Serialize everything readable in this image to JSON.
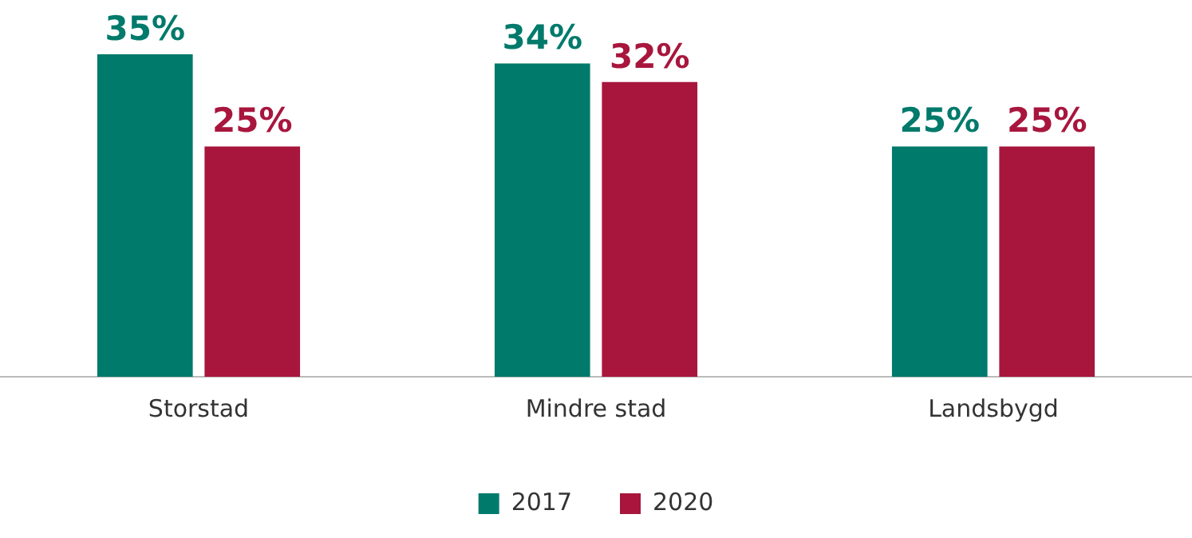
{
  "chart_data": {
    "type": "bar",
    "categories": [
      "Storstad",
      "Mindre stad",
      "Landsbygd"
    ],
    "series": [
      {
        "name": "2017",
        "color": "#007a6b",
        "values": [
          35,
          34,
          25
        ],
        "value_labels": [
          "35%",
          "34%",
          "25%"
        ]
      },
      {
        "name": "2020",
        "color": "#a8163d",
        "values": [
          25,
          32,
          25
        ],
        "value_labels": [
          "25%",
          "32%",
          "25%"
        ]
      }
    ],
    "legend": "bottom",
    "grid": false
  }
}
